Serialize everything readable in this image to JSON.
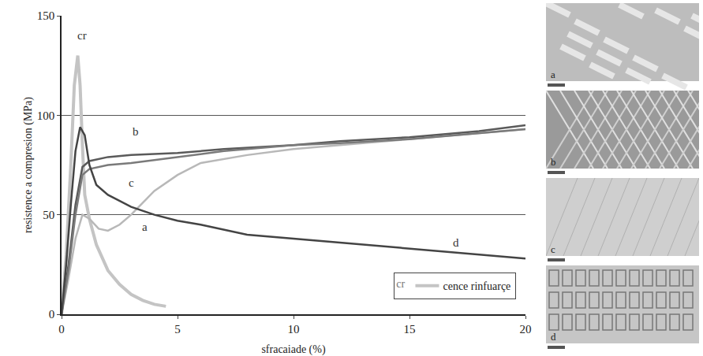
{
  "chart_data": {
    "type": "line",
    "x_label": "sfracaiade (%)",
    "y_label": "resistence a compresion (MPa)",
    "xlim": [
      0,
      20
    ],
    "xticks": [
      0,
      5,
      10,
      15,
      20
    ],
    "ylim": [
      0,
      150
    ],
    "yticks": [
      0,
      50,
      100,
      150
    ],
    "grid": true,
    "legend": "bottom right",
    "legend_title": "cr",
    "series": [
      {
        "name": "cence rinfuarçe",
        "color": "#c4c4c4",
        "x": [
          0,
          0.2,
          0.4,
          0.55,
          0.7,
          0.8,
          0.9,
          1.0,
          1.2,
          1.5,
          2,
          2.5,
          3,
          3.5,
          4,
          4.5
        ],
        "values": [
          0,
          30,
          75,
          115,
          130,
          115,
          85,
          60,
          48,
          35,
          22,
          15,
          10,
          7,
          5,
          4
        ]
      },
      {
        "color": "#b8b8b8",
        "x": [
          0,
          0.3,
          0.6,
          0.9,
          1.2,
          1.6,
          2,
          2.5,
          3,
          3.5,
          4,
          5,
          6,
          8,
          10,
          12,
          15,
          18,
          20
        ],
        "values": [
          0,
          18,
          38,
          50,
          48,
          43,
          42,
          45,
          50,
          56,
          62,
          70,
          76,
          80,
          83,
          85,
          88,
          91,
          93
        ]
      },
      {
        "color": "#5a5a5a",
        "x": [
          0,
          0.3,
          0.6,
          0.9,
          1.2,
          1.6,
          2,
          3,
          5,
          7,
          10,
          12,
          15,
          18,
          20
        ],
        "values": [
          0,
          25,
          55,
          74,
          77,
          78,
          79,
          80,
          81,
          83,
          85,
          87,
          89,
          92,
          95
        ]
      },
      {
        "color": "#7a7a7a",
        "x": [
          0,
          0.3,
          0.6,
          0.9,
          1.2,
          1.6,
          2,
          3,
          5,
          7,
          10,
          12,
          15,
          18,
          20
        ],
        "values": [
          0,
          22,
          50,
          70,
          73,
          74,
          75,
          76,
          79,
          82,
          85,
          86,
          88,
          91,
          93
        ]
      },
      {
        "color": "#444444",
        "x": [
          0,
          0.2,
          0.4,
          0.6,
          0.8,
          1.0,
          1.2,
          1.5,
          2,
          2.5,
          3,
          4,
          5,
          6,
          8,
          10,
          12,
          15,
          18,
          20
        ],
        "values": [
          0,
          25,
          55,
          82,
          94,
          90,
          75,
          65,
          60,
          57,
          54,
          50,
          47,
          45,
          40,
          38,
          36,
          33,
          30,
          28
        ]
      }
    ],
    "annotations": [
      {
        "text": "cr",
        "x": 0.9,
        "y": 140
      },
      {
        "text": "b",
        "x": 3.2,
        "y": 92
      },
      {
        "text": "c",
        "x": 3.0,
        "y": 66
      },
      {
        "text": "a",
        "x": 3.6,
        "y": 44
      },
      {
        "text": "d",
        "x": 17,
        "y": 36
      }
    ]
  },
  "panels": [
    {
      "label": "a"
    },
    {
      "label": "b"
    },
    {
      "label": "c"
    },
    {
      "label": "d"
    }
  ]
}
